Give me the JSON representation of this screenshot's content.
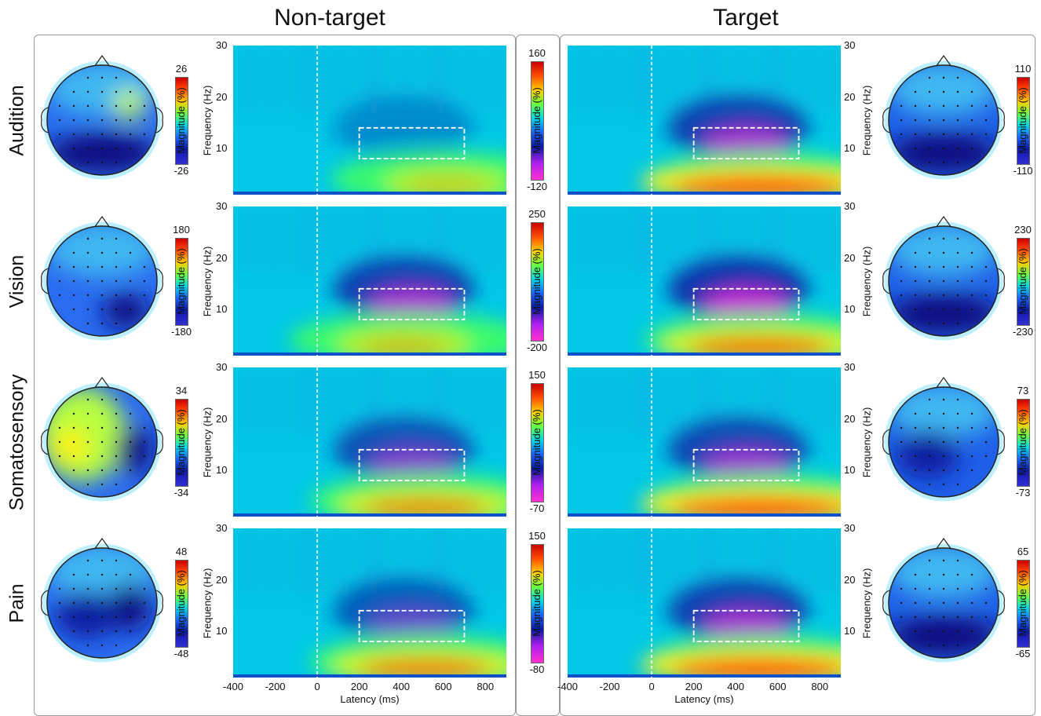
{
  "columns": {
    "left_title": "Non-target",
    "right_title": "Target"
  },
  "rows": [
    {
      "label": "Audition",
      "left_cbar": {
        "max": "26",
        "min": "-26"
      },
      "center_cbar": {
        "max": "160",
        "min": "-120"
      },
      "right_cbar": {
        "max": "110",
        "min": "-110"
      }
    },
    {
      "label": "Vision",
      "left_cbar": {
        "max": "180",
        "min": "-180"
      },
      "center_cbar": {
        "max": "250",
        "min": "-200"
      },
      "right_cbar": {
        "max": "230",
        "min": "-230"
      }
    },
    {
      "label": "Somatosensory",
      "left_cbar": {
        "max": "34",
        "min": "-34"
      },
      "center_cbar": {
        "max": "150",
        "min": "-70"
      },
      "right_cbar": {
        "max": "73",
        "min": "-73"
      }
    },
    {
      "label": "Pain",
      "left_cbar": {
        "max": "48",
        "min": "-48"
      },
      "center_cbar": {
        "max": "150",
        "min": "-80"
      },
      "right_cbar": {
        "max": "65",
        "min": "-65"
      }
    }
  ],
  "axis": {
    "ylabel": "Frequency (Hz)",
    "yticks": [
      "30",
      "20",
      "10"
    ],
    "xlabel": "Latency (ms)",
    "xticks": [
      "-400",
      "-200",
      "0",
      "200",
      "400",
      "600",
      "800"
    ],
    "cbar_label": "Magnitude (%)"
  },
  "colors": {
    "background": "#00c8e6",
    "deep_blue": "#0a1aa0",
    "magenta": "#ff20e0",
    "green": "#40ff60",
    "yellow": "#ffee00",
    "red": "#ff0000",
    "box": "#ffffff"
  },
  "chart_data": {
    "type": "heatmap",
    "title": "",
    "xlabel": "Latency (ms)",
    "ylabel": "Frequency (Hz)",
    "xlim": [
      -400,
      900
    ],
    "ylim": [
      1,
      30
    ],
    "roi_box": {
      "latency_ms": [
        200,
        700
      ],
      "frequency_hz": [
        8,
        14
      ]
    },
    "stimulus_onset_ms": 0,
    "panels": [
      {
        "row": "Audition",
        "condition": "Non-target",
        "cmin": -120,
        "cmax": 160,
        "alpha_suppression": 0.15,
        "low_freq_power": 0.45,
        "low_freq_peak_ms": 500
      },
      {
        "row": "Audition",
        "condition": "Target",
        "cmin": -120,
        "cmax": 160,
        "alpha_suppression": 0.85,
        "low_freq_power": 1.0,
        "low_freq_peak_ms": 400
      },
      {
        "row": "Vision",
        "condition": "Non-target",
        "cmin": -200,
        "cmax": 250,
        "alpha_suppression": 0.85,
        "low_freq_power": 0.5,
        "low_freq_peak_ms": 300
      },
      {
        "row": "Vision",
        "condition": "Target",
        "cmin": -200,
        "cmax": 250,
        "alpha_suppression": 0.95,
        "low_freq_power": 0.8,
        "low_freq_peak_ms": 400
      },
      {
        "row": "Somatosensory",
        "condition": "Non-target",
        "cmin": -70,
        "cmax": 150,
        "alpha_suppression": 0.7,
        "low_freq_power": 0.7,
        "low_freq_peak_ms": 400
      },
      {
        "row": "Somatosensory",
        "condition": "Target",
        "cmin": -70,
        "cmax": 150,
        "alpha_suppression": 0.8,
        "low_freq_power": 1.0,
        "low_freq_peak_ms": 400
      },
      {
        "row": "Pain",
        "condition": "Non-target",
        "cmin": -80,
        "cmax": 150,
        "alpha_suppression": 0.6,
        "low_freq_power": 0.75,
        "low_freq_peak_ms": 400
      },
      {
        "row": "Pain",
        "condition": "Target",
        "cmin": -80,
        "cmax": 150,
        "alpha_suppression": 0.85,
        "low_freq_power": 1.0,
        "low_freq_peak_ms": 400
      }
    ],
    "topographies": [
      {
        "row": "Audition",
        "condition": "Non-target",
        "min": -26,
        "max": 26,
        "pattern": "posterior-negative, right-frontal-positive"
      },
      {
        "row": "Audition",
        "condition": "Target",
        "min": -110,
        "max": 110,
        "pattern": "posterior-negative"
      },
      {
        "row": "Vision",
        "condition": "Non-target",
        "min": -180,
        "max": 180,
        "pattern": "right-posterior-negative"
      },
      {
        "row": "Vision",
        "condition": "Target",
        "min": -230,
        "max": 230,
        "pattern": "posterior-negative"
      },
      {
        "row": "Somatosensory",
        "condition": "Non-target",
        "min": -34,
        "max": 34,
        "pattern": "left-positive, right-central-negative"
      },
      {
        "row": "Somatosensory",
        "condition": "Target",
        "min": -73,
        "max": 73,
        "pattern": "central-negative"
      },
      {
        "row": "Pain",
        "condition": "Non-target",
        "min": -48,
        "max": 48,
        "pattern": "right-central-negative"
      },
      {
        "row": "Pain",
        "condition": "Target",
        "min": -65,
        "max": 65,
        "pattern": "posterior-negative"
      }
    ]
  }
}
